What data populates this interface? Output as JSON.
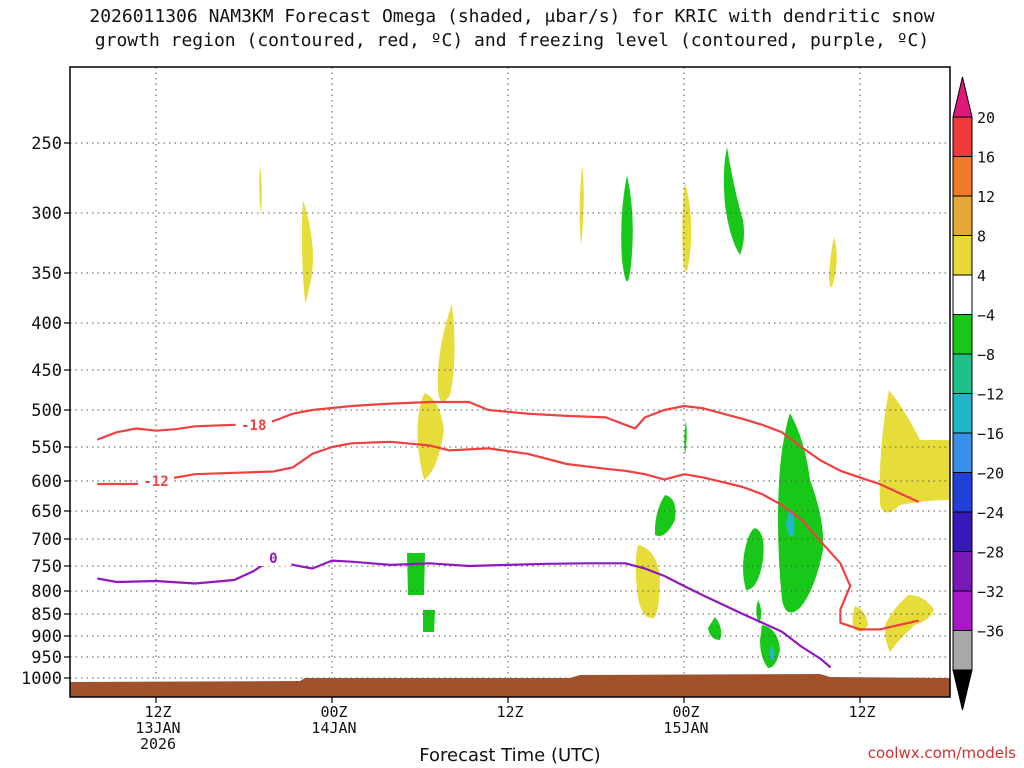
{
  "chart_data": {
    "type": "heatmap",
    "title_line1": "2026011306 NAM3KM Forecast Omega (shaded, μbar/s) for KRIC with dendritic snow",
    "title_line2": "growth region (contoured, red, ºC) and freezing level (contoured, purple, ºC)",
    "xlabel": "Forecast Time (UTC)",
    "ylabel": "",
    "x_range_hours": [
      0,
      84
    ],
    "y_range_mb": [
      1050,
      150
    ],
    "y_ticks": [
      250,
      300,
      350,
      400,
      450,
      500,
      550,
      600,
      650,
      700,
      750,
      800,
      850,
      900,
      950,
      1000
    ],
    "x_ticks": [
      {
        "hour": 6,
        "label1": "12Z",
        "label2": "13JAN",
        "label3": "2026"
      },
      {
        "hour": 24,
        "label1": "00Z",
        "label2": "14JAN",
        "label3": ""
      },
      {
        "hour": 42,
        "label1": "12Z",
        "label2": "",
        "label3": ""
      },
      {
        "hour": 60,
        "label1": "00Z",
        "label2": "15JAN",
        "label3": ""
      },
      {
        "hour": 78,
        "label1": "12Z",
        "label2": "",
        "label3": ""
      }
    ],
    "colorbar": {
      "labels": [
        "20",
        "16",
        "12",
        "8",
        "4",
        "−4",
        "−8",
        "−12",
        "−16",
        "−20",
        "−24",
        "−28",
        "−32",
        "−36"
      ],
      "colors": [
        "#f03a3a",
        "#f07a28",
        "#e8a838",
        "#e8d838",
        "#ffffff",
        "#18c818",
        "#20c088",
        "#20b8c8",
        "#3890e8",
        "#2040d8",
        "#3818b8",
        "#7818b8",
        "#a818c8",
        "#a8a8a8"
      ],
      "top_arrow_color": "#e0187a",
      "bottom_arrow_color": "#000000"
    },
    "series": [
      {
        "name": "-18",
        "color": "#f04040",
        "label_at_hour": 16,
        "points": [
          [
            0,
            540
          ],
          [
            2,
            530
          ],
          [
            4,
            525
          ],
          [
            6,
            528
          ],
          [
            8,
            526
          ],
          [
            10,
            522
          ],
          [
            14,
            520
          ],
          [
            18,
            515
          ],
          [
            20,
            505
          ],
          [
            22,
            500
          ],
          [
            26,
            495
          ],
          [
            30,
            492
          ],
          [
            34,
            490
          ],
          [
            38,
            490
          ],
          [
            40,
            500
          ],
          [
            44,
            505
          ],
          [
            48,
            508
          ],
          [
            52,
            510
          ],
          [
            54,
            520
          ],
          [
            55,
            525
          ],
          [
            56,
            510
          ],
          [
            58,
            500
          ],
          [
            60,
            495
          ],
          [
            62,
            498
          ],
          [
            64,
            505
          ],
          [
            66,
            512
          ],
          [
            68,
            520
          ],
          [
            70,
            530
          ],
          [
            72,
            550
          ],
          [
            74,
            570
          ],
          [
            76,
            585
          ],
          [
            78,
            595
          ],
          [
            80,
            605
          ],
          [
            82,
            620
          ],
          [
            84,
            635
          ]
        ]
      },
      {
        "name": "-12",
        "color": "#f04040",
        "label_at_hour": 6,
        "points": [
          [
            0,
            605
          ],
          [
            4,
            605
          ],
          [
            6,
            600
          ],
          [
            10,
            590
          ],
          [
            14,
            588
          ],
          [
            18,
            586
          ],
          [
            20,
            580
          ],
          [
            22,
            560
          ],
          [
            24,
            550
          ],
          [
            26,
            545
          ],
          [
            30,
            543
          ],
          [
            34,
            548
          ],
          [
            36,
            555
          ],
          [
            40,
            552
          ],
          [
            44,
            560
          ],
          [
            48,
            575
          ],
          [
            52,
            582
          ],
          [
            54,
            585
          ],
          [
            56,
            590
          ],
          [
            58,
            598
          ],
          [
            60,
            590
          ],
          [
            62,
            595
          ],
          [
            64,
            602
          ],
          [
            66,
            610
          ],
          [
            68,
            622
          ],
          [
            70,
            640
          ],
          [
            72,
            665
          ],
          [
            74,
            705
          ],
          [
            76,
            745
          ],
          [
            77,
            790
          ],
          [
            76,
            840
          ],
          [
            76,
            870
          ],
          [
            78,
            885
          ],
          [
            80,
            885
          ],
          [
            82,
            875
          ],
          [
            84,
            865
          ]
        ]
      },
      {
        "name": "0",
        "color": "#9018c0",
        "label_at_hour": 18,
        "points": [
          [
            0,
            775
          ],
          [
            2,
            782
          ],
          [
            6,
            780
          ],
          [
            10,
            785
          ],
          [
            14,
            778
          ],
          [
            16,
            760
          ],
          [
            18,
            735
          ],
          [
            20,
            748
          ],
          [
            22,
            755
          ],
          [
            24,
            740
          ],
          [
            26,
            742
          ],
          [
            30,
            748
          ],
          [
            34,
            745
          ],
          [
            38,
            750
          ],
          [
            42,
            748
          ],
          [
            46,
            746
          ],
          [
            50,
            745
          ],
          [
            54,
            745
          ],
          [
            56,
            755
          ],
          [
            58,
            770
          ],
          [
            60,
            790
          ],
          [
            62,
            810
          ],
          [
            64,
            830
          ],
          [
            66,
            850
          ],
          [
            68,
            870
          ],
          [
            70,
            890
          ],
          [
            72,
            925
          ],
          [
            74,
            955
          ],
          [
            75,
            975
          ]
        ]
      }
    ]
  },
  "watermark": "coolwx.com/models"
}
